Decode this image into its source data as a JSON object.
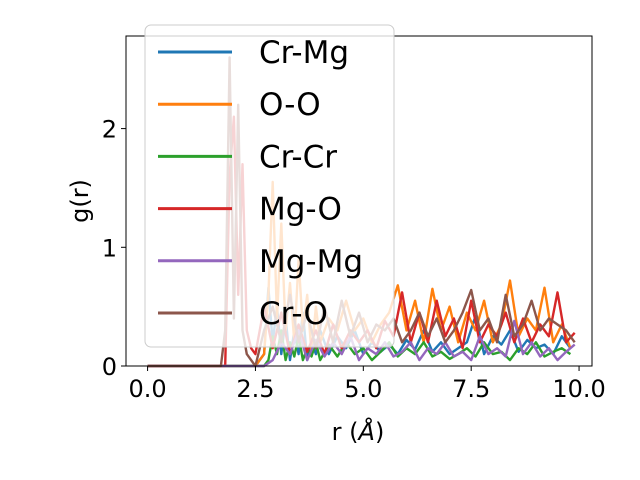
{
  "chart_data": {
    "type": "line",
    "title": "",
    "xlabel": "r ($\\AA$)",
    "xlabel_parts": [
      "r (",
      "Å",
      ")"
    ],
    "ylabel": "g(r)",
    "xlim": [
      -0.5,
      10.3
    ],
    "ylim": [
      0,
      2.78
    ],
    "xticks": [
      "0.0",
      "2.5",
      "5.0",
      "7.5",
      "10.0"
    ],
    "xtick_values": [
      0,
      2.5,
      5,
      7.5,
      10
    ],
    "yticks": [
      "0",
      "1",
      "2"
    ],
    "ytick_values": [
      0,
      1,
      2
    ],
    "grid": false,
    "legend": "upper-left",
    "series": [
      {
        "name": "Cr-Mg",
        "color": "#1f77b4",
        "x": [
          0,
          0.5,
          1.0,
          1.5,
          2.0,
          2.5,
          2.7,
          2.8,
          2.9,
          3.0,
          3.1,
          3.2,
          3.3,
          3.4,
          3.5,
          3.6,
          3.7,
          3.8,
          3.9,
          4.0,
          4.2,
          4.4,
          4.6,
          4.8,
          5.0,
          5.2,
          5.4,
          5.6,
          5.8,
          6.0,
          6.2,
          6.4,
          6.6,
          6.8,
          7.0,
          7.2,
          7.4,
          7.6,
          7.8,
          8.0,
          8.2,
          8.4,
          8.6,
          8.8,
          9.0,
          9.2,
          9.4,
          9.6,
          9.8
        ],
        "y": [
          0,
          0,
          0,
          0,
          0,
          0,
          0.1,
          0.66,
          0.2,
          0.5,
          0.1,
          0.4,
          0.05,
          0.3,
          0.1,
          0.45,
          0.05,
          0.2,
          0.1,
          0.3,
          0.1,
          0.25,
          0.15,
          0.3,
          0.1,
          0.2,
          0.12,
          0.18,
          0.1,
          0.22,
          0.14,
          0.3,
          0.12,
          0.2,
          0.1,
          0.15,
          0.2,
          0.42,
          0.1,
          0.25,
          0.18,
          0.3,
          0.12,
          0.22,
          0.15,
          0.18,
          0.1,
          0.25,
          0.15
        ]
      },
      {
        "name": "O-O",
        "color": "#ff7f0e",
        "x": [
          0,
          0.5,
          1.0,
          1.5,
          2.0,
          2.5,
          2.7,
          2.8,
          2.9,
          3.0,
          3.1,
          3.2,
          3.3,
          3.4,
          3.5,
          3.6,
          3.7,
          3.8,
          3.9,
          4.0,
          4.2,
          4.4,
          4.6,
          4.8,
          5.0,
          5.2,
          5.4,
          5.6,
          5.8,
          6.0,
          6.2,
          6.4,
          6.6,
          6.8,
          7.0,
          7.2,
          7.4,
          7.6,
          7.8,
          8.0,
          8.2,
          8.4,
          8.6,
          8.8,
          9.0,
          9.2,
          9.4,
          9.6,
          9.8
        ],
        "y": [
          0,
          0,
          0,
          0,
          0,
          0,
          0.1,
          0.6,
          1.55,
          0.4,
          1.2,
          0.3,
          0.7,
          0.2,
          0.9,
          0.3,
          0.6,
          0.1,
          0.5,
          0.2,
          0.4,
          0.3,
          0.55,
          0.3,
          0.4,
          0.2,
          0.35,
          0.45,
          0.68,
          0.3,
          0.55,
          0.2,
          0.65,
          0.3,
          0.5,
          0.2,
          0.45,
          0.3,
          0.55,
          0.2,
          0.35,
          0.72,
          0.25,
          0.4,
          0.3,
          0.66,
          0.2,
          0.35,
          0.15
        ]
      },
      {
        "name": "Cr-Cr",
        "color": "#2ca02c",
        "x": [
          0,
          0.5,
          1.0,
          1.5,
          2.0,
          2.5,
          2.7,
          2.8,
          2.9,
          3.0,
          3.1,
          3.2,
          3.3,
          3.4,
          3.5,
          3.6,
          3.7,
          3.8,
          3.9,
          4.0,
          4.2,
          4.4,
          4.6,
          4.8,
          5.0,
          5.2,
          5.4,
          5.6,
          5.8,
          6.0,
          6.2,
          6.4,
          6.6,
          6.8,
          7.0,
          7.2,
          7.4,
          7.6,
          7.8,
          8.0,
          8.2,
          8.4,
          8.6,
          8.8,
          9.0,
          9.2,
          9.4,
          9.6,
          9.8
        ],
        "y": [
          0,
          0,
          0,
          0,
          0,
          0,
          0,
          0.05,
          0.25,
          0.1,
          0.3,
          0.05,
          0.2,
          0.08,
          0.25,
          0.05,
          0.15,
          0.08,
          0.2,
          0.05,
          0.18,
          0.08,
          0.2,
          0.1,
          0.15,
          0.05,
          0.12,
          0.2,
          0.08,
          0.15,
          0.1,
          0.2,
          0.08,
          0.12,
          0.06,
          0.1,
          0.15,
          0.08,
          0.2,
          0.1,
          0.12,
          0.05,
          0.15,
          0.1,
          0.2,
          0.08,
          0.12,
          0.15,
          0.1
        ]
      },
      {
        "name": "Mg-O",
        "color": "#d62728",
        "x": [
          0,
          0.5,
          1.0,
          1.5,
          1.8,
          1.9,
          2.0,
          2.1,
          2.2,
          2.3,
          2.4,
          2.5,
          2.7,
          2.9,
          3.1,
          3.3,
          3.5,
          3.7,
          3.9,
          4.1,
          4.3,
          4.5,
          4.7,
          4.9,
          5.1,
          5.3,
          5.5,
          5.7,
          5.9,
          6.1,
          6.3,
          6.5,
          6.7,
          6.9,
          7.1,
          7.3,
          7.5,
          7.7,
          7.9,
          8.1,
          8.3,
          8.5,
          8.7,
          8.9,
          9.1,
          9.3,
          9.5,
          9.7,
          9.9
        ],
        "y": [
          0,
          0,
          0,
          0,
          0,
          1.6,
          2.1,
          0.6,
          1.7,
          0.3,
          0.15,
          0.1,
          0.5,
          0.15,
          0.45,
          0.1,
          0.35,
          0.12,
          0.3,
          0.1,
          0.35,
          0.15,
          0.3,
          0.2,
          0.3,
          0.15,
          0.38,
          0.25,
          0.62,
          0.2,
          0.45,
          0.2,
          0.55,
          0.25,
          0.4,
          0.15,
          0.55,
          0.2,
          0.35,
          0.25,
          0.45,
          0.2,
          0.4,
          0.2,
          0.35,
          0.25,
          0.62,
          0.2,
          0.28
        ]
      },
      {
        "name": "Mg-Mg",
        "color": "#9467bd",
        "x": [
          0,
          0.5,
          1.0,
          1.5,
          2.0,
          2.5,
          2.7,
          2.9,
          3.1,
          3.3,
          3.5,
          3.7,
          3.9,
          4.1,
          4.3,
          4.5,
          4.7,
          4.9,
          5.1,
          5.3,
          5.5,
          5.7,
          5.9,
          6.1,
          6.3,
          6.5,
          6.7,
          6.9,
          7.1,
          7.3,
          7.5,
          7.7,
          7.9,
          8.1,
          8.3,
          8.5,
          8.7,
          8.9,
          9.1,
          9.3,
          9.5,
          9.7,
          9.9
        ],
        "y": [
          0,
          0,
          0,
          0,
          0,
          0,
          0,
          0.05,
          0.2,
          0.1,
          0.3,
          0.05,
          0.22,
          0.08,
          0.2,
          0.1,
          0.25,
          0.05,
          0.15,
          0.1,
          0.2,
          0.08,
          0.12,
          0.2,
          0.05,
          0.15,
          0.1,
          0.2,
          0.08,
          0.12,
          0.05,
          0.25,
          0.1,
          0.15,
          0.08,
          0.38,
          0.1,
          0.2,
          0.08,
          0.15,
          0.05,
          0.12,
          0.18
        ]
      },
      {
        "name": "Cr-O",
        "color": "#8c564b",
        "x": [
          0,
          0.5,
          1.0,
          1.5,
          1.7,
          1.8,
          1.9,
          2.0,
          2.1,
          2.2,
          2.3,
          2.4,
          2.5,
          2.7,
          2.9,
          3.1,
          3.3,
          3.5,
          3.7,
          3.9,
          4.1,
          4.3,
          4.5,
          4.7,
          4.9,
          5.1,
          5.3,
          5.5,
          5.7,
          5.9,
          6.1,
          6.3,
          6.5,
          6.7,
          6.9,
          7.1,
          7.3,
          7.5,
          7.7,
          7.9,
          8.1,
          8.3,
          8.5,
          8.7,
          8.9,
          9.1,
          9.3,
          9.5,
          9.7,
          9.9
        ],
        "y": [
          0,
          0,
          0,
          0,
          0,
          0.3,
          2.6,
          0.4,
          2.2,
          0.3,
          0.1,
          0.05,
          0,
          0.3,
          0.5,
          0.2,
          0.6,
          0.2,
          0.45,
          0.15,
          0.5,
          0.2,
          0.55,
          0.25,
          0.45,
          0.2,
          0.35,
          0.3,
          0.4,
          0.2,
          0.3,
          0.45,
          0.25,
          0.4,
          0.2,
          0.3,
          0.45,
          0.64,
          0.3,
          0.4,
          0.2,
          0.6,
          0.25,
          0.35,
          0.55,
          0.3,
          0.4,
          0.35,
          0.3,
          0.2
        ]
      }
    ]
  }
}
